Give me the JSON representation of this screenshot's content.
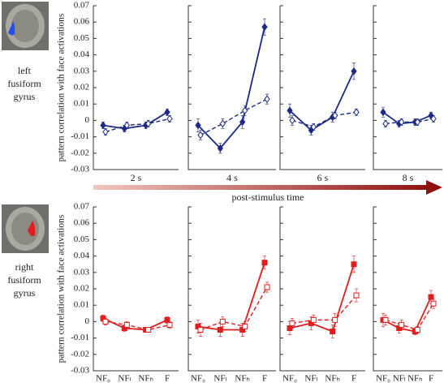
{
  "chart_data": [
    {
      "type": "line",
      "side_label": [
        "left",
        "fusiform",
        "gyrus"
      ],
      "ylabel": "pattern correlation with face activations",
      "xlabel": "post-stimulus time",
      "ylim": [
        -0.03,
        0.07
      ],
      "yticks": [
        -0.03,
        -0.02,
        -0.01,
        0,
        0.01,
        0.02,
        0.03,
        0.04,
        0.05,
        0.06,
        0.07
      ],
      "categories": [
        null,
        null,
        null,
        null
      ],
      "panels": [
        {
          "title": "2 s",
          "series": [
            {
              "color": "#1c2a86",
              "style": "solid",
              "values": [
                -0.003,
                -0.005,
                -0.003,
                0.005
              ],
              "errors": [
                0.002,
                0.002,
                0.002,
                0.002
              ]
            },
            {
              "color": "#1c2a86",
              "style": "dashed",
              "values": [
                -0.007,
                -0.003,
                -0.002,
                0.001
              ],
              "errors": [
                0.002,
                0.002,
                0.002,
                0.002
              ]
            }
          ]
        },
        {
          "title": "4 s",
          "series": [
            {
              "color": "#1c2a86",
              "style": "solid",
              "values": [
                -0.003,
                -0.017,
                -0.001,
                0.057
              ],
              "errors": [
                0.004,
                0.003,
                0.004,
                0.005
              ]
            },
            {
              "color": "#1c2a86",
              "style": "dashed",
              "values": [
                -0.009,
                -0.002,
                0.006,
                0.013
              ],
              "errors": [
                0.003,
                0.003,
                0.003,
                0.003
              ]
            }
          ]
        },
        {
          "title": "6 s",
          "series": [
            {
              "color": "#1c2a86",
              "style": "solid",
              "values": [
                0.006,
                -0.006,
                0.002,
                0.03
              ],
              "errors": [
                0.004,
                0.003,
                0.003,
                0.005
              ]
            },
            {
              "color": "#1c2a86",
              "style": "dashed",
              "values": [
                0.0,
                -0.004,
                0.003,
                0.005
              ],
              "errors": [
                0.003,
                0.002,
                0.002,
                0.002
              ]
            }
          ]
        },
        {
          "title": "8 s",
          "series": [
            {
              "color": "#1c2a86",
              "style": "solid",
              "values": [
                0.005,
                -0.002,
                -0.001,
                0.003
              ],
              "errors": [
                0.003,
                0.002,
                0.002,
                0.002
              ]
            },
            {
              "color": "#1c2a86",
              "style": "dashed",
              "values": [
                -0.002,
                -0.001,
                -0.001,
                0.001
              ],
              "errors": [
                0.002,
                0.002,
                0.002,
                0.002
              ]
            }
          ]
        }
      ]
    },
    {
      "type": "line",
      "side_label": [
        "right",
        "fusiform",
        "gyrus"
      ],
      "ylabel": "pattern correlation with face activations",
      "ylim": [
        -0.03,
        0.07
      ],
      "yticks": [
        -0.03,
        -0.02,
        -0.01,
        0,
        0.01,
        0.02,
        0.03,
        0.04,
        0.05,
        0.06,
        0.07
      ],
      "categories": [
        "NF₀",
        "NFₗ",
        "NFₕ",
        "F"
      ],
      "panels": [
        {
          "series": [
            {
              "color": "#e01e1e",
              "style": "solid",
              "values": [
                0.002,
                -0.004,
                -0.005,
                0.001
              ],
              "errors": [
                0.002,
                0.002,
                0.001,
                0.002
              ]
            },
            {
              "color": "#e01e1e",
              "style": "dashed",
              "values": [
                0.0,
                -0.002,
                -0.005,
                -0.002
              ],
              "errors": [
                0.002,
                0.002,
                0.001,
                0.002
              ]
            }
          ]
        },
        {
          "series": [
            {
              "color": "#e01e1e",
              "style": "solid",
              "values": [
                -0.003,
                -0.005,
                -0.005,
                0.036
              ],
              "errors": [
                0.004,
                0.004,
                0.004,
                0.004
              ]
            },
            {
              "color": "#e01e1e",
              "style": "dashed",
              "values": [
                -0.005,
                0.0,
                -0.003,
                0.021
              ],
              "errors": [
                0.004,
                0.003,
                0.003,
                0.003
              ]
            }
          ]
        },
        {
          "series": [
            {
              "color": "#e01e1e",
              "style": "solid",
              "values": [
                -0.004,
                -0.001,
                -0.006,
                0.035
              ],
              "errors": [
                0.004,
                0.004,
                0.004,
                0.005
              ]
            },
            {
              "color": "#e01e1e",
              "style": "dashed",
              "values": [
                -0.001,
                0.001,
                0.001,
                0.016
              ],
              "errors": [
                0.003,
                0.003,
                0.004,
                0.004
              ]
            }
          ]
        },
        {
          "series": [
            {
              "color": "#e01e1e",
              "style": "solid",
              "values": [
                0.001,
                -0.004,
                -0.006,
                0.015
              ],
              "errors": [
                0.004,
                0.003,
                0.002,
                0.004
              ]
            },
            {
              "color": "#e01e1e",
              "style": "dashed",
              "values": [
                0.001,
                -0.002,
                -0.005,
                0.011
              ],
              "errors": [
                0.003,
                0.003,
                0.002,
                0.003
              ]
            }
          ]
        }
      ]
    }
  ]
}
